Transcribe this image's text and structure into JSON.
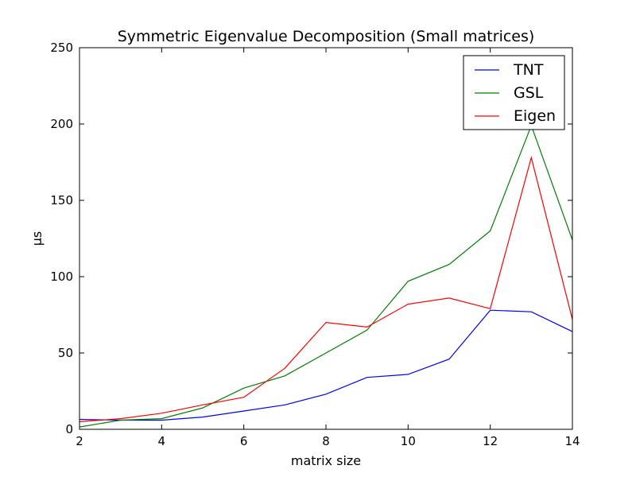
{
  "chart_data": {
    "type": "line",
    "title": "Symmetric Eigenvalue Decomposition (Small matrices)",
    "xlabel": "matrix size",
    "ylabel": "μs",
    "xlim": [
      2,
      14
    ],
    "ylim": [
      0,
      250
    ],
    "xticks": [
      2,
      4,
      6,
      8,
      10,
      12,
      14
    ],
    "yticks": [
      0,
      50,
      100,
      150,
      200,
      250
    ],
    "x": [
      2,
      3,
      4,
      5,
      6,
      7,
      8,
      9,
      10,
      11,
      12,
      13,
      14
    ],
    "grid": false,
    "legend_position": "top-right",
    "series": [
      {
        "name": "TNT",
        "color": "#0000ff",
        "values": [
          6.5,
          6,
          6,
          8,
          12,
          16,
          23,
          34,
          36,
          46,
          78,
          77,
          64
        ]
      },
      {
        "name": "GSL",
        "color": "#008000",
        "values": [
          1.5,
          6,
          7,
          14,
          27,
          35,
          50,
          65,
          97,
          108,
          130,
          199,
          124
        ]
      },
      {
        "name": "Eigen",
        "color": "#ff0000",
        "values": [
          5,
          7,
          10.5,
          16,
          21,
          40,
          70,
          67,
          82,
          86,
          79,
          178,
          72
        ]
      }
    ]
  }
}
